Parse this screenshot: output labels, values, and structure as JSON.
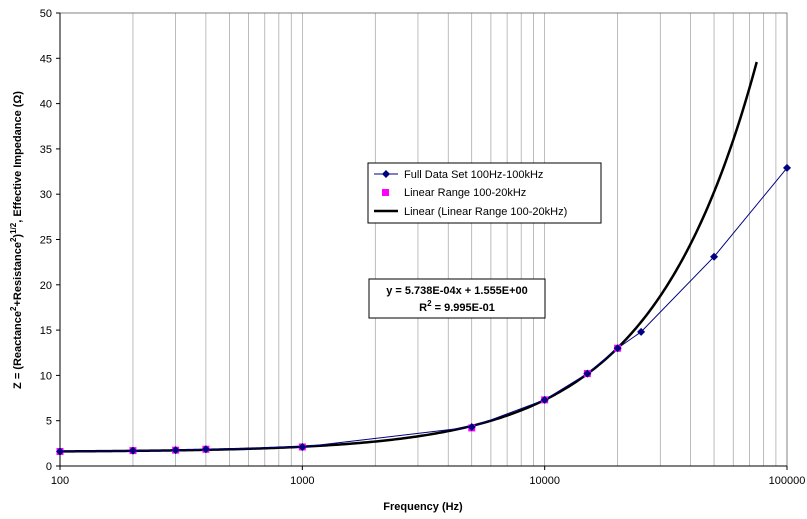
{
  "chart_data": {
    "type": "scatter",
    "x_scale": "log",
    "xlabel": "Frequency (Hz)",
    "ylabel": {
      "p1": "Z = (Reactance",
      "sup1": "2",
      "p2": "+Resistance",
      "sup2": "2",
      "p3": ")",
      "sup3": "1/2",
      "p4": ", Effective  Impedance (",
      "omega": "Ω",
      "p5": ")"
    },
    "xlim": [
      100,
      100000
    ],
    "ylim": [
      0,
      50
    ],
    "x_ticks": [
      {
        "value": 100,
        "label": "100"
      },
      {
        "value": 1000,
        "label": "1000"
      },
      {
        "value": 10000,
        "label": "10000"
      },
      {
        "value": 100000,
        "label": "100000"
      }
    ],
    "y_ticks": [
      {
        "value": 0,
        "label": "0"
      },
      {
        "value": 5,
        "label": "5"
      },
      {
        "value": 10,
        "label": "10"
      },
      {
        "value": 15,
        "label": "15"
      },
      {
        "value": 20,
        "label": "20"
      },
      {
        "value": 25,
        "label": "25"
      },
      {
        "value": 30,
        "label": "30"
      },
      {
        "value": 35,
        "label": "35"
      },
      {
        "value": 40,
        "label": "40"
      },
      {
        "value": 45,
        "label": "45"
      },
      {
        "value": 50,
        "label": "50"
      }
    ],
    "grid": {
      "minor_x": true,
      "major_x": true,
      "horizontal": false
    },
    "legend_position": "center-right",
    "series": [
      {
        "name": "Full Data Set 100Hz-100kHz",
        "marker": "diamond",
        "color": "#000080",
        "line": true,
        "points": [
          [
            100,
            1.6
          ],
          [
            200,
            1.7
          ],
          [
            300,
            1.75
          ],
          [
            400,
            1.85
          ],
          [
            1000,
            2.1
          ],
          [
            5000,
            4.3
          ],
          [
            10000,
            7.3
          ],
          [
            15000,
            10.2
          ],
          [
            20000,
            13.0
          ],
          [
            25000,
            14.8
          ],
          [
            50000,
            23.1
          ],
          [
            100000,
            32.9
          ]
        ]
      },
      {
        "name": "Linear Range 100-20kHz",
        "marker": "square",
        "color": "#FF00FF",
        "line": false,
        "points": [
          [
            100,
            1.6
          ],
          [
            200,
            1.7
          ],
          [
            300,
            1.75
          ],
          [
            400,
            1.85
          ],
          [
            1000,
            2.1
          ],
          [
            5000,
            4.2
          ],
          [
            10000,
            7.3
          ],
          [
            15000,
            10.2
          ],
          [
            20000,
            13.0
          ]
        ]
      },
      {
        "name": "Linear (Linear Range 100-20kHz)",
        "type": "trendline",
        "color": "#000000",
        "slope": 0.0005738,
        "intercept": 1.555,
        "x_range": [
          100,
          75000
        ]
      }
    ],
    "annotation": {
      "equation": "y = 5.738E-04x + 1.555E+00",
      "r2_prefix": "R",
      "r2_sup": "2",
      "r2_rest": " = 9.995E-01"
    }
  }
}
